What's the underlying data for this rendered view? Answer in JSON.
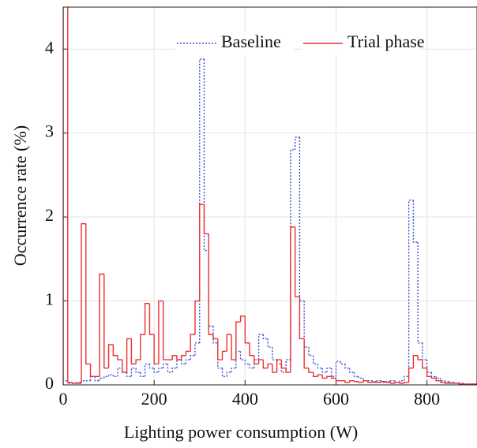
{
  "chart_data": {
    "type": "histogram-step",
    "xlabel": "Lighting power consumption (W)",
    "ylabel": "Occurrence rate (%)",
    "bins": [
      0,
      10,
      20,
      30,
      40,
      50,
      60,
      70,
      80,
      90,
      100,
      110,
      120,
      130,
      140,
      150,
      160,
      170,
      180,
      190,
      200,
      210,
      220,
      230,
      240,
      250,
      260,
      270,
      280,
      290,
      300,
      310,
      320,
      330,
      340,
      350,
      360,
      370,
      380,
      390,
      400,
      410,
      420,
      430,
      440,
      450,
      460,
      470,
      480,
      490,
      500,
      510,
      520,
      530,
      540,
      550,
      560,
      570,
      580,
      590,
      600,
      610,
      620,
      630,
      640,
      650,
      660,
      670,
      680,
      690,
      700,
      710,
      720,
      730,
      740,
      750,
      760,
      770,
      780,
      790,
      800,
      810,
      820,
      830,
      840,
      850,
      860,
      870,
      880,
      890,
      900,
      910
    ],
    "series": [
      {
        "name": "Baseline",
        "color": "#3a4fd8",
        "dash": "dotted",
        "values": [
          0.05,
          0.02,
          0.02,
          0.03,
          0.05,
          0.05,
          0.1,
          0.05,
          0.08,
          0.1,
          0.12,
          0.1,
          0.2,
          0.15,
          0.1,
          0.2,
          0.15,
          0.1,
          0.25,
          0.2,
          0.15,
          0.2,
          0.25,
          0.15,
          0.2,
          0.3,
          0.25,
          0.3,
          0.35,
          0.5,
          3.88,
          1.6,
          0.7,
          0.5,
          0.2,
          0.1,
          0.15,
          0.2,
          0.4,
          0.3,
          0.25,
          0.2,
          0.3,
          0.6,
          0.55,
          0.45,
          0.3,
          0.25,
          0.15,
          0.3,
          2.8,
          2.95,
          1.0,
          0.45,
          0.35,
          0.25,
          0.2,
          0.15,
          0.2,
          0.1,
          0.28,
          0.25,
          0.2,
          0.15,
          0.1,
          0.08,
          0.05,
          0.05,
          0.04,
          0.05,
          0.03,
          0.04,
          0.05,
          0.03,
          0.05,
          0.1,
          2.2,
          1.7,
          0.5,
          0.3,
          0.15,
          0.1,
          0.08,
          0.05,
          0.04,
          0.03,
          0.02,
          0.02,
          0.01,
          0.01,
          0.01
        ]
      },
      {
        "name": "Trial phase",
        "color": "#ee3030",
        "dash": "solid",
        "values": [
          6,
          0.03,
          0.02,
          0.02,
          1.92,
          0.25,
          0.1,
          0.1,
          1.32,
          0.2,
          0.48,
          0.35,
          0.3,
          0.15,
          0.55,
          0.25,
          0.3,
          0.6,
          0.97,
          0.6,
          0.25,
          1.0,
          0.3,
          0.3,
          0.35,
          0.3,
          0.35,
          0.4,
          0.6,
          1.0,
          2.15,
          1.8,
          0.6,
          0.55,
          0.3,
          0.4,
          0.6,
          0.3,
          0.75,
          0.82,
          0.5,
          0.35,
          0.25,
          0.3,
          0.2,
          0.25,
          0.15,
          0.3,
          0.2,
          0.15,
          1.88,
          1.05,
          0.55,
          0.2,
          0.15,
          0.1,
          0.12,
          0.08,
          0.1,
          0.08,
          0.05,
          0.05,
          0.03,
          0.05,
          0.04,
          0.03,
          0.05,
          0.03,
          0.03,
          0.03,
          0.04,
          0.03,
          0.02,
          0.03,
          0.02,
          0.03,
          0.2,
          0.35,
          0.3,
          0.2,
          0.1,
          0.08,
          0.05,
          0.03,
          0.02,
          0.02,
          0.02,
          0.01,
          0.01,
          0.01,
          0.01
        ]
      }
    ],
    "xlim": [
      0,
      910
    ],
    "xticks": [
      0,
      200,
      400,
      600,
      800
    ],
    "ylim": [
      0,
      4.5
    ],
    "yticks": [
      0,
      1,
      2,
      3,
      4
    ],
    "grid": true,
    "legend": "upper right"
  }
}
